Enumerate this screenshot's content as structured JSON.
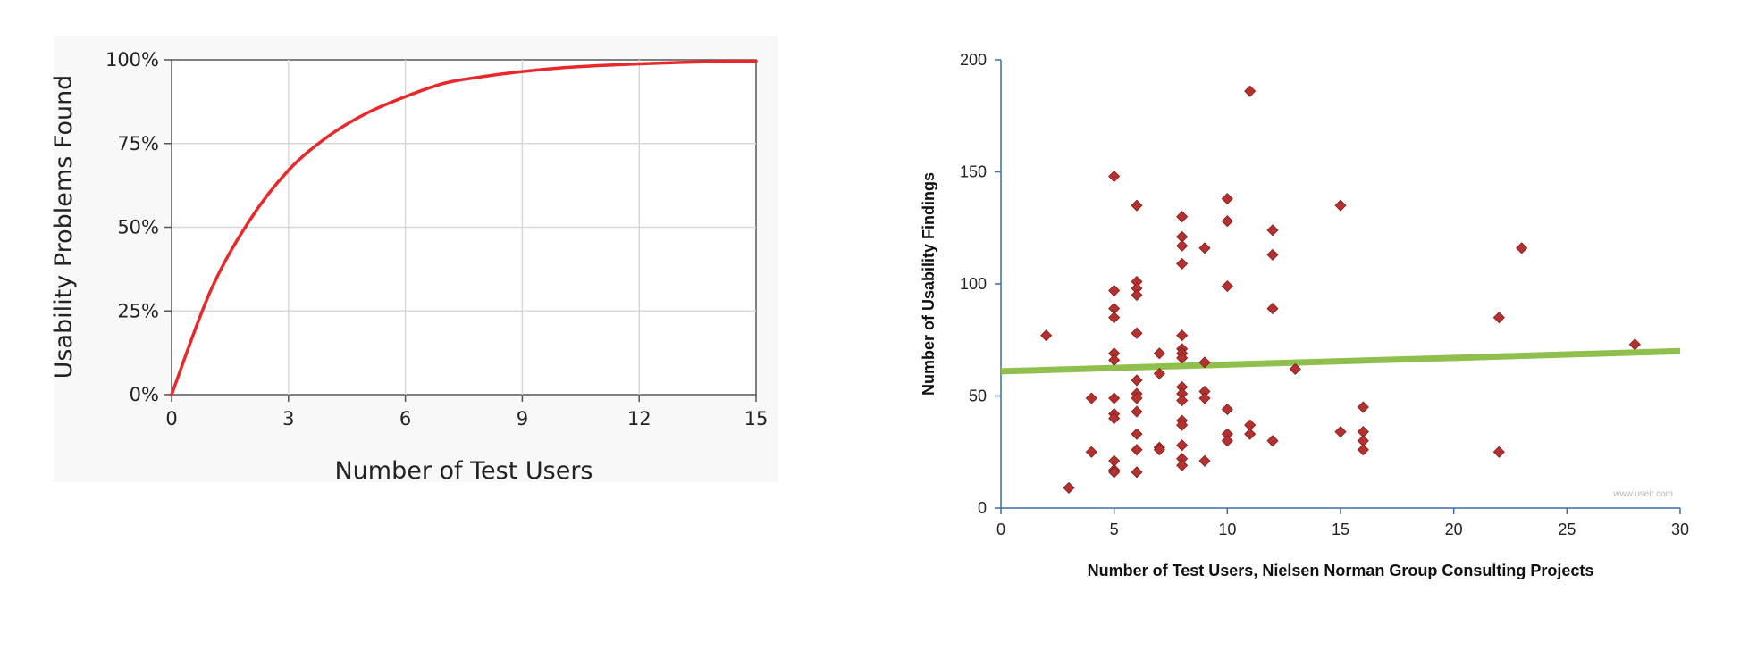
{
  "chart_data": [
    {
      "type": "line",
      "xlabel": "Number of Test Users",
      "ylabel": "Usability Problems Found",
      "xlim": [
        0,
        15
      ],
      "ylim": [
        0,
        100
      ],
      "x_ticks": [
        "0",
        "3",
        "6",
        "9",
        "12",
        "15"
      ],
      "y_ticks": [
        "0%",
        "25%",
        "50%",
        "75%",
        "100%"
      ],
      "grid": true,
      "series": [
        {
          "color": "#e8282a",
          "x": [
            0,
            1,
            2,
            3,
            4,
            5,
            6,
            7,
            8,
            9,
            10,
            11,
            12,
            13,
            14,
            15
          ],
          "y": [
            0,
            31,
            52,
            67,
            77,
            84,
            89,
            93,
            95,
            96.5,
            97.6,
            98.3,
            98.8,
            99.2,
            99.5,
            99.6
          ]
        }
      ]
    },
    {
      "type": "scatter",
      "xlabel": "Number of Test Users, Nielsen Norman Group Consulting Projects",
      "ylabel": "Number of Usability Findings",
      "xlim": [
        0,
        30
      ],
      "ylim": [
        0,
        200
      ],
      "x_ticks": [
        "0",
        "5",
        "10",
        "15",
        "20",
        "25",
        "30"
      ],
      "y_ticks": [
        "0",
        "50",
        "100",
        "150",
        "200"
      ],
      "grid": false,
      "watermark": "www.useit.com",
      "marker_color": "#b5302f",
      "trendline": {
        "color": "#8fbf4d",
        "x": [
          0,
          30
        ],
        "y": [
          61,
          70
        ]
      },
      "points": [
        [
          2,
          77
        ],
        [
          3,
          9
        ],
        [
          4,
          25
        ],
        [
          4,
          49
        ],
        [
          5,
          148
        ],
        [
          5,
          97
        ],
        [
          5,
          89
        ],
        [
          5,
          85
        ],
        [
          5,
          69
        ],
        [
          5,
          66
        ],
        [
          5,
          49
        ],
        [
          5,
          42
        ],
        [
          5,
          40
        ],
        [
          5,
          21
        ],
        [
          5,
          17
        ],
        [
          5,
          16
        ],
        [
          6,
          135
        ],
        [
          6,
          101
        ],
        [
          6,
          98
        ],
        [
          6,
          95
        ],
        [
          6,
          78
        ],
        [
          6,
          57
        ],
        [
          6,
          51
        ],
        [
          6,
          49
        ],
        [
          6,
          43
        ],
        [
          6,
          33
        ],
        [
          6,
          26
        ],
        [
          6,
          16
        ],
        [
          7,
          69
        ],
        [
          7,
          60
        ],
        [
          7,
          27
        ],
        [
          7,
          26
        ],
        [
          8,
          130
        ],
        [
          8,
          121
        ],
        [
          8,
          117
        ],
        [
          8,
          109
        ],
        [
          8,
          77
        ],
        [
          8,
          71
        ],
        [
          8,
          69
        ],
        [
          8,
          67
        ],
        [
          8,
          54
        ],
        [
          8,
          51
        ],
        [
          8,
          48
        ],
        [
          8,
          39
        ],
        [
          8,
          37
        ],
        [
          8,
          28
        ],
        [
          8,
          22
        ],
        [
          8,
          19
        ],
        [
          9,
          116
        ],
        [
          9,
          65
        ],
        [
          9,
          52
        ],
        [
          9,
          49
        ],
        [
          9,
          21
        ],
        [
          10,
          138
        ],
        [
          10,
          128
        ],
        [
          10,
          99
        ],
        [
          10,
          44
        ],
        [
          10,
          33
        ],
        [
          10,
          30
        ],
        [
          11,
          186
        ],
        [
          11,
          37
        ],
        [
          11,
          33
        ],
        [
          12,
          124
        ],
        [
          12,
          113
        ],
        [
          12,
          89
        ],
        [
          12,
          30
        ],
        [
          13,
          62
        ],
        [
          15,
          135
        ],
        [
          15,
          34
        ],
        [
          16,
          45
        ],
        [
          16,
          34
        ],
        [
          16,
          30
        ],
        [
          16,
          26
        ],
        [
          22,
          85
        ],
        [
          22,
          25
        ],
        [
          23,
          116
        ],
        [
          28,
          73
        ]
      ]
    }
  ]
}
